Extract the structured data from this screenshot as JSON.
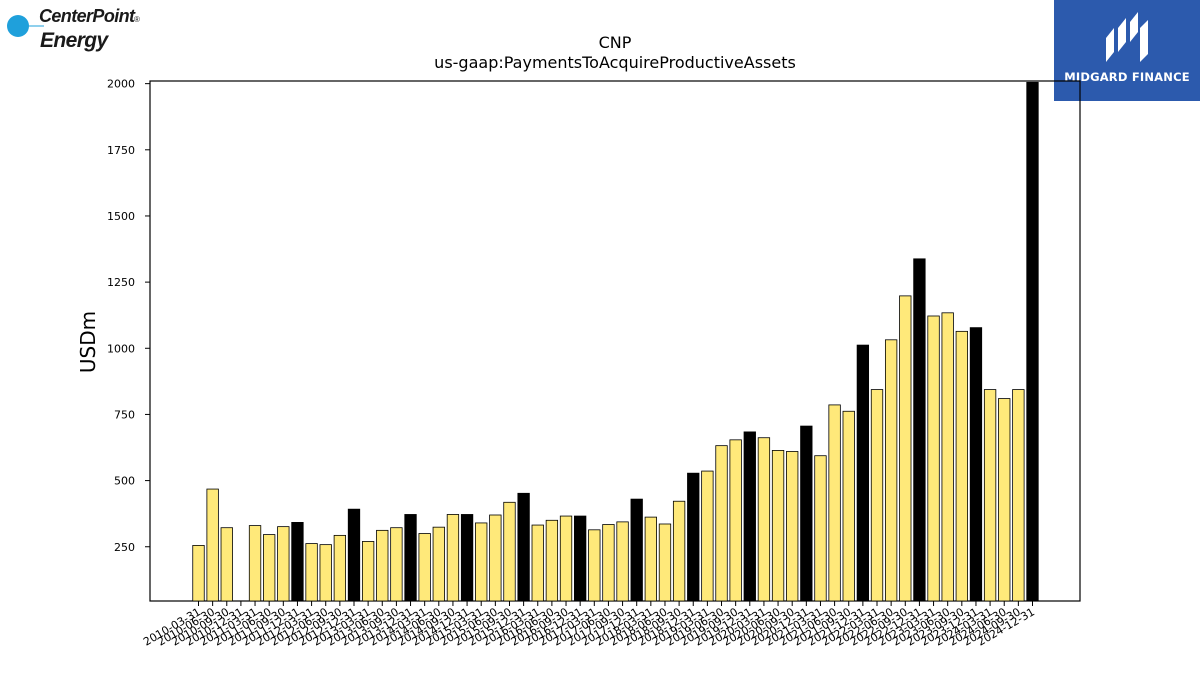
{
  "logos": {
    "left": {
      "name": "CenterPoint",
      "mark": "®",
      "line2": "Energy",
      "color_text": "#1a1a1a",
      "color_circle": "#1fa0db"
    },
    "right": {
      "name": "MIDGARD FINANCE",
      "bg": "#2c5aad"
    }
  },
  "colors": {
    "bar_fill": "#ffe97a",
    "bar_highlight": "#000000",
    "bar_stroke": "#000000"
  },
  "chart_data": {
    "type": "bar",
    "title": "CNP",
    "subtitle": "us-gaap:PaymentsToAcquireProductiveAssets",
    "ylabel": "USDm",
    "xlabel": "",
    "ylim": [
      45,
      2010
    ],
    "yticks": [
      250,
      500,
      750,
      1000,
      1250,
      1500,
      1750,
      2000
    ],
    "grid": false,
    "categories": [
      "2010-03-31",
      "2010-06-30",
      "2010-09-30",
      "2010-12-31",
      "2011-03-31",
      "2011-06-30",
      "2011-09-30",
      "2011-12-31",
      "2012-03-31",
      "2012-06-30",
      "2012-09-30",
      "2012-12-31",
      "2013-03-31",
      "2013-06-30",
      "2013-09-30",
      "2013-12-31",
      "2014-03-31",
      "2014-06-30",
      "2014-09-30",
      "2014-12-31",
      "2015-03-31",
      "2015-06-30",
      "2015-09-30",
      "2015-12-31",
      "2016-03-31",
      "2016-06-30",
      "2016-09-30",
      "2016-12-31",
      "2017-03-31",
      "2017-06-30",
      "2017-09-30",
      "2017-12-31",
      "2018-03-31",
      "2018-06-30",
      "2018-09-30",
      "2018-12-31",
      "2019-03-31",
      "2019-06-30",
      "2019-09-30",
      "2019-12-31",
      "2020-03-31",
      "2020-06-30",
      "2020-09-30",
      "2020-12-31",
      "2021-03-31",
      "2021-06-30",
      "2021-09-30",
      "2021-12-31",
      "2022-03-31",
      "2022-06-30",
      "2022-09-30",
      "2022-12-31",
      "2023-03-31",
      "2023-06-30",
      "2023-09-30",
      "2023-12-31",
      "2024-03-31",
      "2024-06-30",
      "2024-09-30",
      "2024-12-31"
    ],
    "values": [
      255,
      468,
      322,
      null,
      330,
      296,
      326,
      342,
      262,
      258,
      293,
      392,
      270,
      312,
      322,
      372,
      300,
      324,
      372,
      372,
      340,
      370,
      418,
      452,
      332,
      350,
      366,
      366,
      314,
      334,
      344,
      430,
      362,
      336,
      422,
      528,
      536,
      632,
      654,
      684,
      662,
      614,
      610,
      706,
      594,
      786,
      762,
      1012,
      844,
      1032,
      1198,
      1338,
      1122,
      1134,
      1064,
      1078,
      844,
      810,
      844,
      2005
    ],
    "highlight": [
      false,
      false,
      false,
      false,
      false,
      false,
      false,
      true,
      false,
      false,
      false,
      true,
      false,
      false,
      false,
      true,
      false,
      false,
      false,
      true,
      false,
      false,
      false,
      true,
      false,
      false,
      false,
      true,
      false,
      false,
      false,
      true,
      false,
      false,
      false,
      true,
      false,
      false,
      false,
      true,
      false,
      false,
      false,
      true,
      false,
      false,
      false,
      true,
      false,
      false,
      false,
      true,
      false,
      false,
      false,
      true,
      false,
      false,
      false,
      true
    ]
  }
}
